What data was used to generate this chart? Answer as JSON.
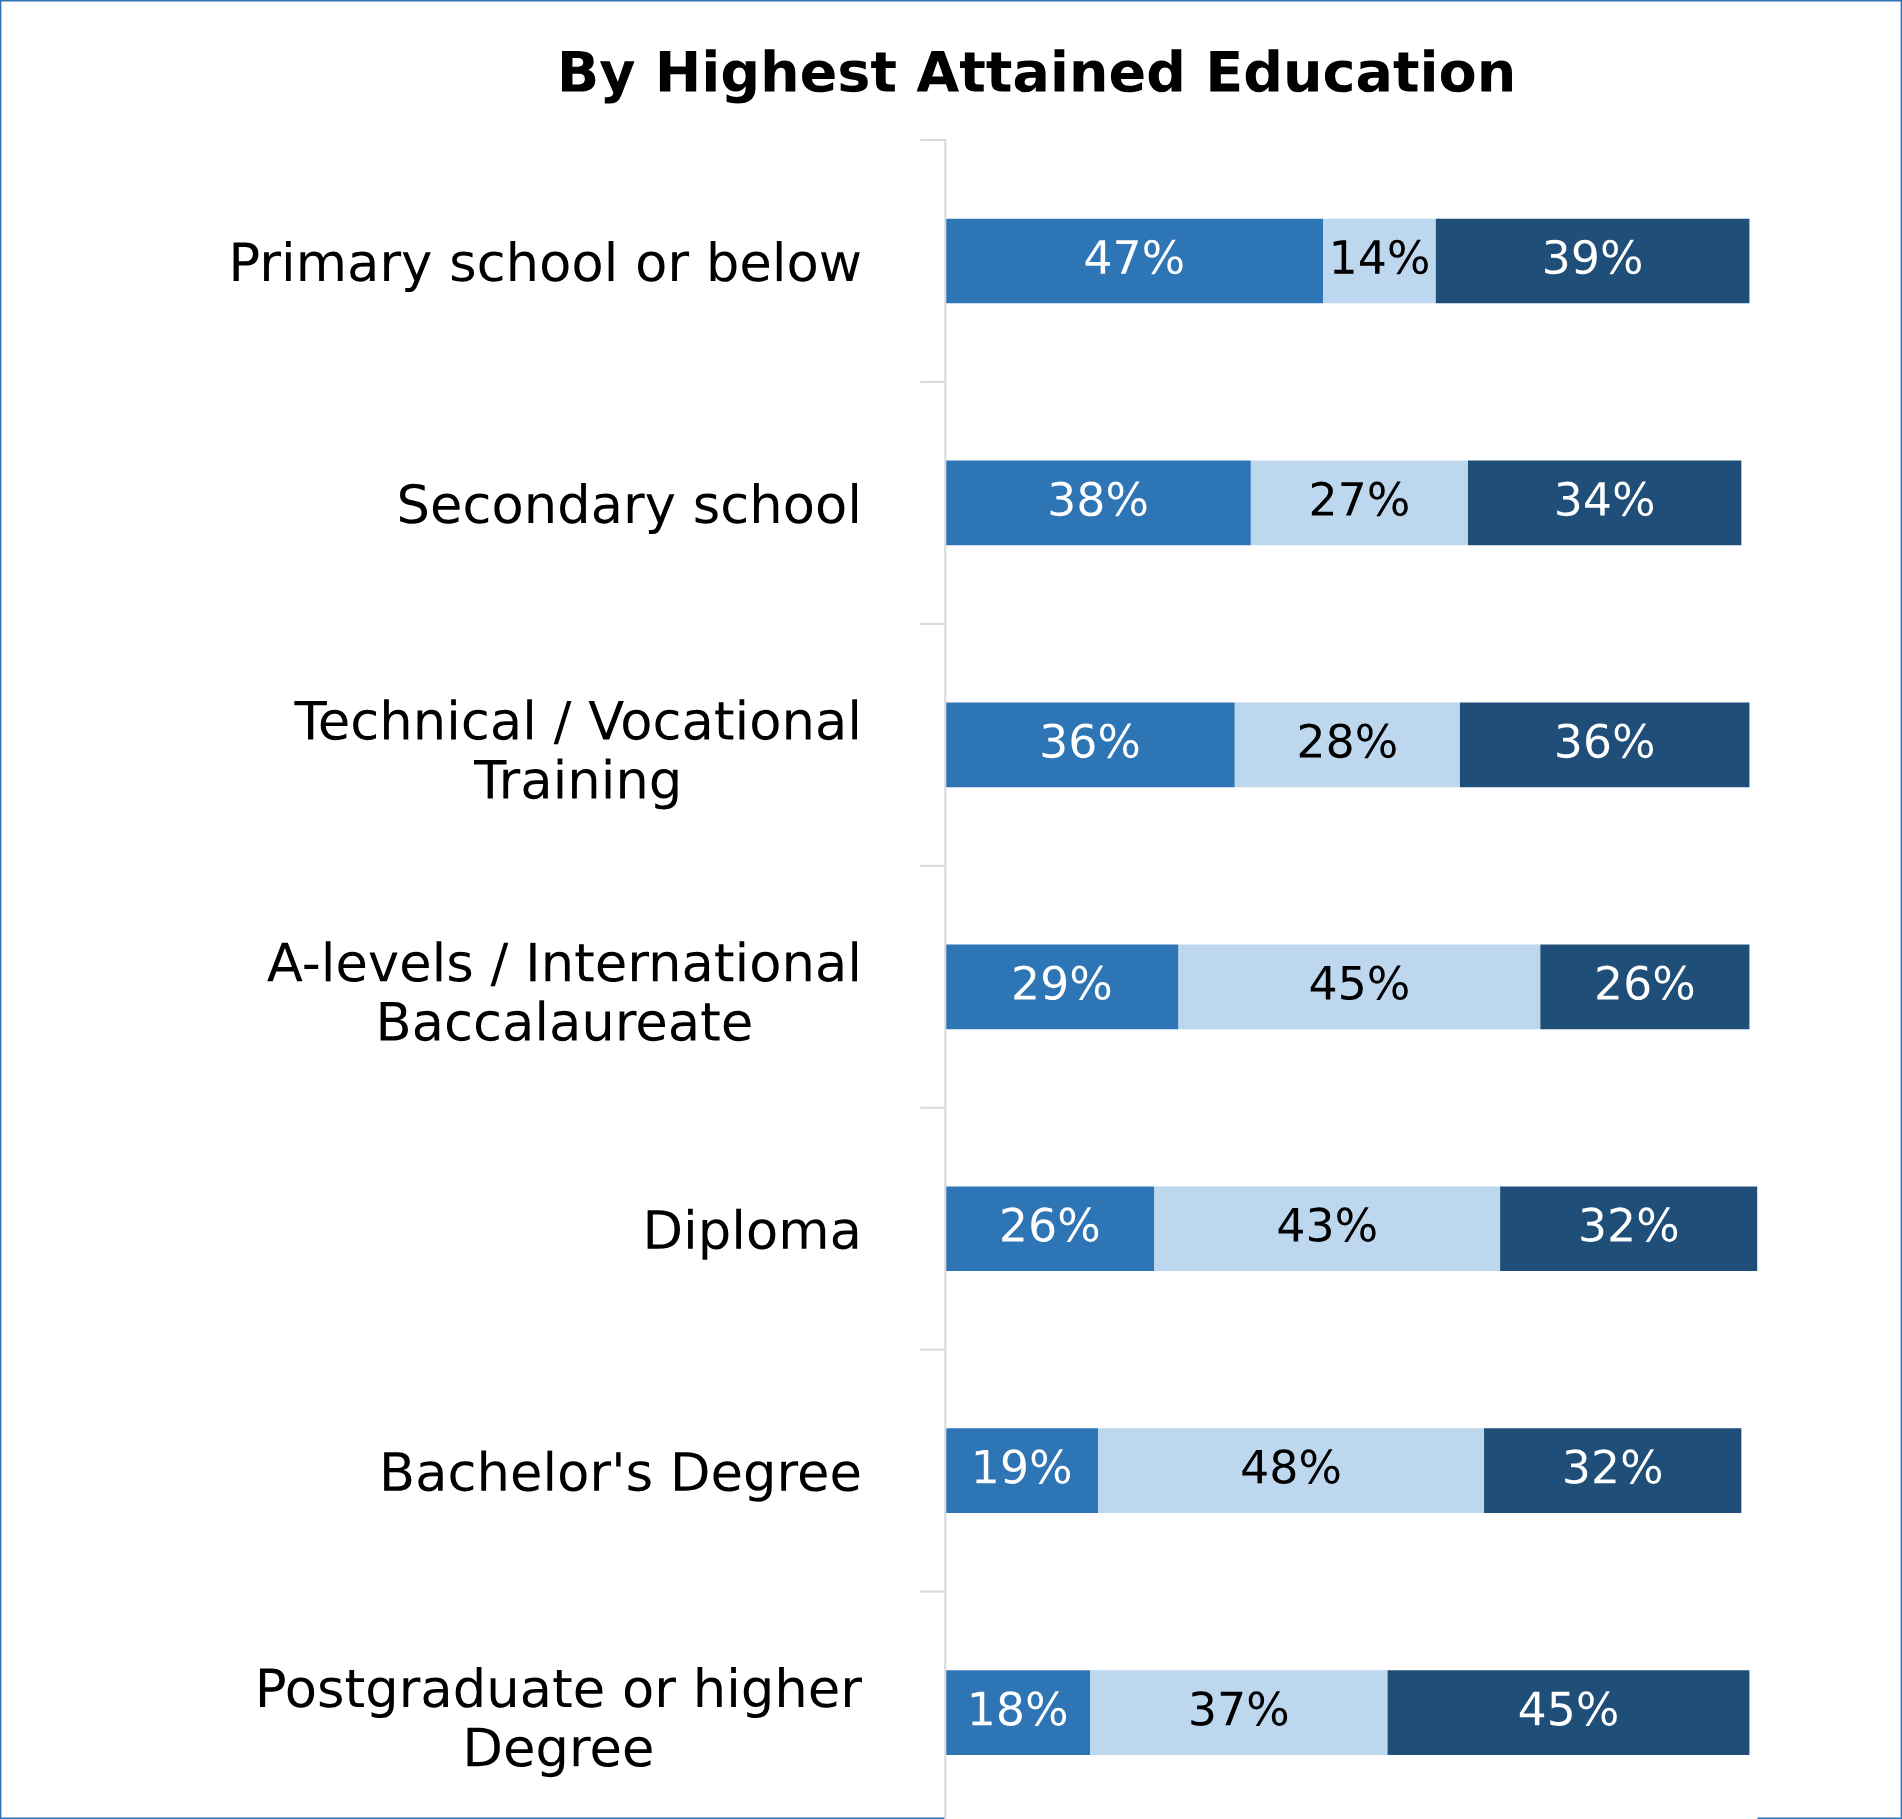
{
  "chart_data": {
    "type": "bar",
    "orientation": "horizontal",
    "stacked": true,
    "grid": false,
    "legend": false,
    "title": "By Highest Attained Education",
    "categories": [
      "Primary school or below",
      "Secondary school",
      "Technical / Vocational\nTraining",
      "A-levels / International\nBaccalaureate",
      "Diploma",
      "Bachelor's Degree",
      "Postgraduate or higher\nDegree"
    ],
    "series": [
      {
        "color": "#2e75b6",
        "values": [
          47,
          38,
          36,
          29,
          26,
          19,
          18
        ],
        "value_labels": [
          "47%",
          "38%",
          "36%",
          "29%",
          "26%",
          "19%",
          "18%"
        ]
      },
      {
        "color": "#bdd7ee",
        "values": [
          14,
          27,
          28,
          45,
          43,
          48,
          37
        ],
        "value_labels": [
          "14%",
          "27%",
          "28%",
          "45%",
          "43%",
          "48%",
          "37%"
        ]
      },
      {
        "color": "#1f4e79",
        "values": [
          39,
          34,
          36,
          26,
          32,
          32,
          45
        ],
        "value_labels": [
          "39%",
          "34%",
          "36%",
          "26%",
          "32%",
          "32%",
          "45%"
        ]
      }
    ]
  }
}
